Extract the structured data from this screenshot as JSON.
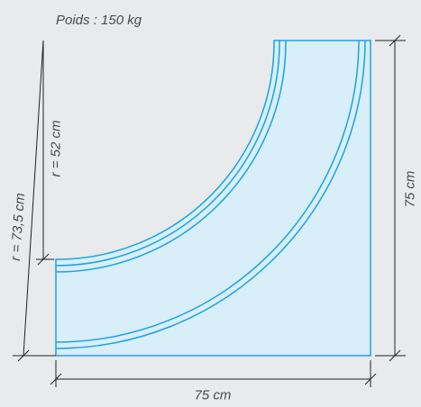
{
  "weight_label": "Poids : 150 kg",
  "outer_radius_label": "r = 73,5 cm",
  "inner_radius_label": "r = 52 cm",
  "width_label": "75 cm",
  "height_label": "75 cm",
  "colors": {
    "fill": "#d8eef8",
    "stroke": "#1aa3e0",
    "dimension": "#222222",
    "text": "#4a4a4a"
  }
}
